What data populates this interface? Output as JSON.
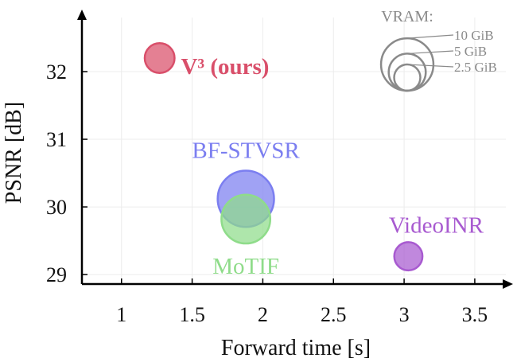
{
  "chart_data": {
    "type": "scatter",
    "xlabel": "Forward time [s]",
    "ylabel": "PSNR [dB]",
    "xlim": [
      0.72,
      3.72
    ],
    "ylim": [
      28.86,
      32.8
    ],
    "xticks": [
      "1",
      "1.5",
      "2",
      "2.5",
      "3",
      "3.5"
    ],
    "xtick_values": [
      1,
      1.5,
      2,
      2.5,
      3,
      3.5
    ],
    "yticks": [
      "29",
      "30",
      "31",
      "32"
    ],
    "ytick_values": [
      29,
      30,
      31,
      32
    ],
    "grid": true,
    "points": [
      {
        "name": "V³ (ours)",
        "x": 1.27,
        "y": 32.2,
        "vram": 2.8,
        "color": "#d94f6a",
        "bold": true
      },
      {
        "name": "BF-STVSR",
        "x": 1.88,
        "y": 30.12,
        "vram": 10,
        "color": "#7b7ef0",
        "bold": false
      },
      {
        "name": "MoTIF",
        "x": 1.88,
        "y": 29.82,
        "vram": 7.5,
        "color": "#8fdc8a",
        "bold": false
      },
      {
        "name": "VideoINR",
        "x": 3.03,
        "y": 29.27,
        "vram": 2.5,
        "color": "#a85ad0",
        "bold": false
      }
    ],
    "legend": {
      "title": "VRAM:",
      "placement": "top-right",
      "entries": [
        {
          "label": "10 GiB",
          "vram": 10
        },
        {
          "label": "5 GiB",
          "vram": 5
        },
        {
          "label": "2.5 GiB",
          "vram": 2.5
        }
      ]
    }
  }
}
